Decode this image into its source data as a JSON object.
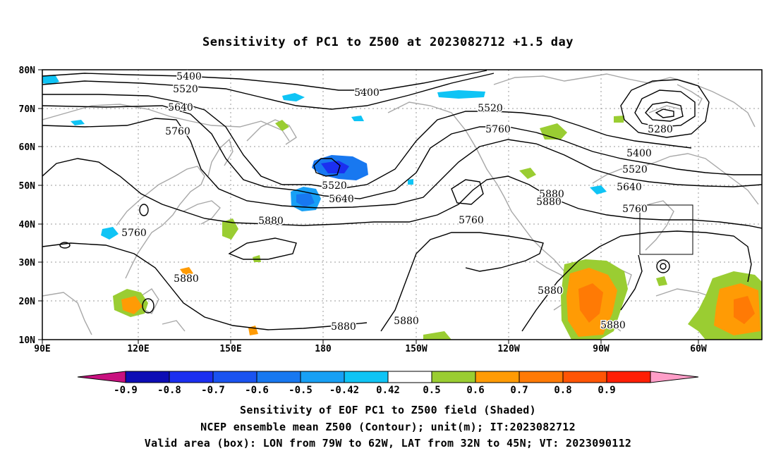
{
  "title": "Sensitivity of PC1 to Z500 at 2023082712 +1.5 day",
  "lat_labels": [
    "80N",
    "70N",
    "60N",
    "50N",
    "40N",
    "30N",
    "20N",
    "10N"
  ],
  "lon_labels": [
    "90E",
    "120E",
    "150E",
    "180",
    "150W",
    "120W",
    "90W",
    "60W"
  ],
  "contour_labels": [
    "5400",
    "5520",
    "5640",
    "5760",
    "5400",
    "5520",
    "5760",
    "5520",
    "5640",
    "5280",
    "5400",
    "5520",
    "5640",
    "5760",
    "5880",
    "5880",
    "5760",
    "5880",
    "5760",
    "5880",
    "5880",
    "5880",
    "5880",
    "5880"
  ],
  "colorbar": {
    "ticks": [
      "-0.9",
      "-0.8",
      "-0.7",
      "-0.6",
      "-0.5",
      "-0.42",
      "0.42",
      "0.5",
      "0.6",
      "0.7",
      "0.8",
      "0.9"
    ],
    "colors": [
      "#c8107f",
      "#0d0db5",
      "#1b2ff0",
      "#1a53f0",
      "#1878f0",
      "#18a0f5",
      "#0fc4f5",
      "#ffffff",
      "#9acd32",
      "#ff9b05",
      "#ff7a05",
      "#ff5505",
      "#ff1f05",
      "#ff9ec8"
    ]
  },
  "footer": {
    "line1": "Sensitivity of EOF PC1 to Z500 field (Shaded)",
    "line2": "NCEP ensemble mean Z500 (Contour); unit(m); IT:2023082712",
    "line3": "Valid area (box): LON from 79W to 62W, LAT from 32N to 45N; VT: 2023090112"
  }
}
